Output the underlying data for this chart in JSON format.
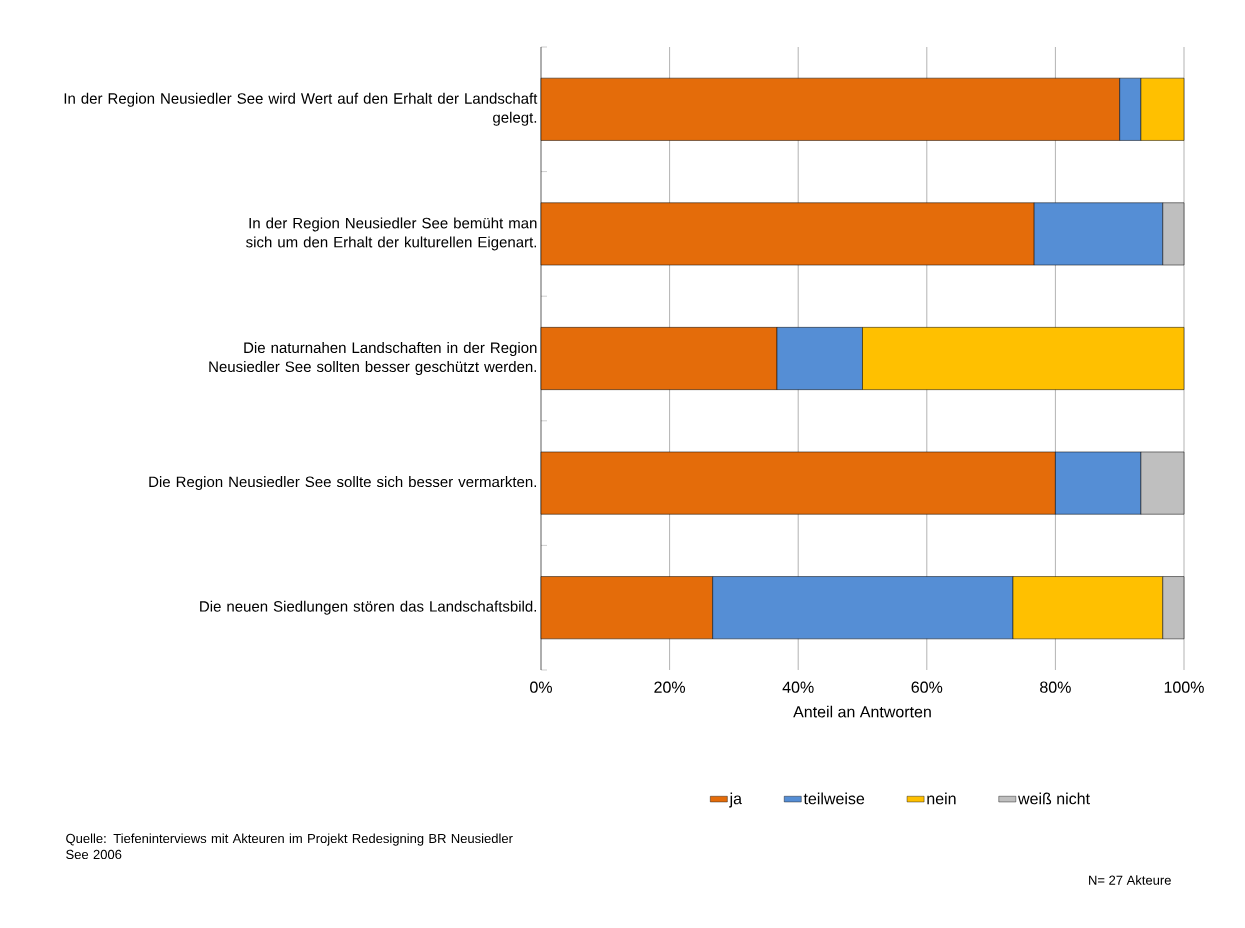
{
  "chart_data": {
    "type": "bar",
    "orientation": "horizontal",
    "stacked": true,
    "categories": [
      "In der Region Neusiedler See wird Wert auf den Erhalt der Landschaft gelegt.",
      "In der Region Neusiedler See bemüht man sich um den Erhalt der kulturellen Eigenart.",
      "Die naturnahen Landschaften in der Region Neusiedler See sollten besser geschützt werden.",
      "Die Region Neusiedler See sollte sich besser vermarkten.",
      "Die neuen Siedlungen stören das Landschaftsbild."
    ],
    "series": [
      {
        "name": "ja",
        "color": "#e46c0a",
        "values": [
          90,
          76.7,
          36.7,
          80,
          26.7
        ]
      },
      {
        "name": "teilweise",
        "color": "#558ed5",
        "values": [
          3.3,
          20,
          13.3,
          13.3,
          46.7
        ]
      },
      {
        "name": "nein",
        "color": "#ffc000",
        "values": [
          6.7,
          null,
          50,
          null,
          23.3
        ]
      },
      {
        "name": "weiß nicht",
        "color": "#bfbfbf",
        "values": [
          null,
          3.3,
          null,
          6.7,
          3.3
        ]
      }
    ],
    "xlabel": "Anteil an Antworten",
    "xlim": [
      0,
      100
    ],
    "xticks": [
      {
        "value": 0,
        "label": "0%"
      },
      {
        "value": 20,
        "label": "20%"
      },
      {
        "value": 40,
        "label": "40%"
      },
      {
        "value": 60,
        "label": "60%"
      },
      {
        "value": 80,
        "label": "80%"
      },
      {
        "value": 100,
        "label": "100%"
      }
    ],
    "grid": "x",
    "legend": "bottom",
    "annotations": [
      "Quelle:  Tiefeninterviews mit Akteuren im Projekt Redesigning BR Neusiedler See 2006",
      "N= 27 Akteure"
    ]
  }
}
